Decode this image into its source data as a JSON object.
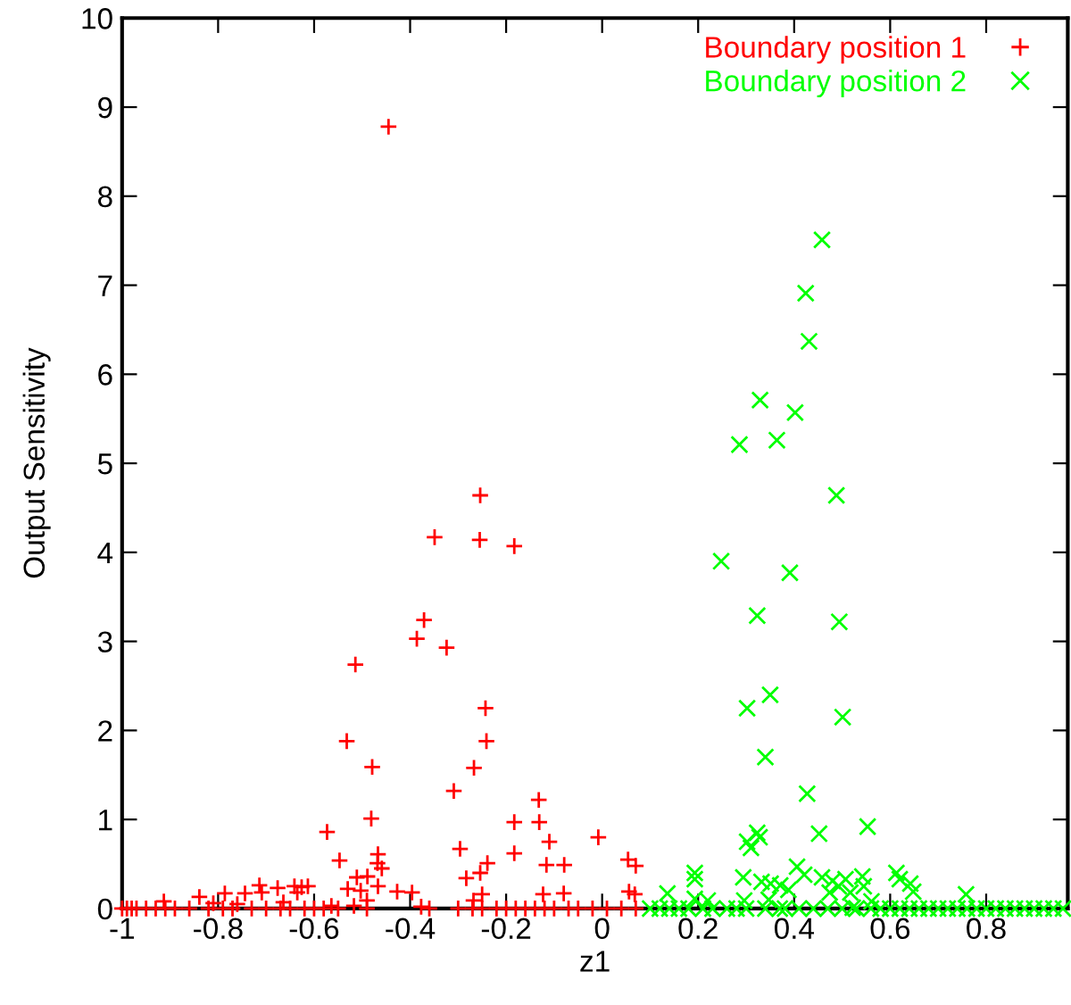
{
  "chart_data": {
    "type": "scatter",
    "xlabel": "z1",
    "ylabel": "Output Sensitivity",
    "xlim": [
      -1,
      0.97
    ],
    "ylim": [
      0,
      10
    ],
    "xticks": [
      -1,
      -0.8,
      -0.6,
      -0.4,
      -0.2,
      0,
      0.2,
      0.4,
      0.6,
      0.8
    ],
    "yticks": [
      0,
      1,
      2,
      3,
      4,
      5,
      6,
      7,
      8,
      9,
      10
    ],
    "grid": false,
    "legend": "top right",
    "series": [
      {
        "name": "Boundary position 1",
        "color": "#ff0000",
        "marker": "plus",
        "x": [
          -0.445,
          -0.254,
          -0.349,
          -0.255,
          -0.183,
          -0.371,
          -0.386,
          -0.324,
          -0.514,
          -0.243,
          -0.241,
          -0.532,
          -0.479,
          -0.267,
          -0.309,
          -0.132,
          -0.481,
          -0.183,
          -0.131,
          -0.573,
          -0.008,
          -0.11,
          -0.467,
          -0.296,
          -0.183,
          0.054,
          0.07,
          -0.547,
          -0.468,
          -0.459,
          -0.239,
          -0.254,
          -0.116,
          -0.079,
          -0.283,
          -0.511,
          -0.489,
          -0.53,
          -0.503,
          -0.467,
          -0.427,
          -0.396,
          -0.49,
          -0.25,
          -0.268,
          -0.123,
          -0.08,
          0.056,
          0.068,
          -0.714,
          -0.709,
          -0.676,
          -0.641,
          -0.626,
          -0.613,
          -0.635,
          -0.786,
          -0.744,
          -0.839,
          -0.76,
          -0.664,
          -0.564,
          -0.517,
          -0.377,
          -0.913,
          -0.81,
          -1,
          -0.99,
          -0.98,
          -0.97,
          -0.95,
          -0.93,
          -0.91,
          -0.89,
          -0.86,
          -0.82,
          -0.79,
          -0.77,
          -0.73,
          -0.7,
          -0.67,
          -0.65,
          -0.62,
          -0.6,
          -0.58,
          -0.55,
          -0.49,
          -0.36,
          -0.3,
          -0.27,
          -0.25,
          -0.22,
          -0.2,
          -0.18,
          -0.16,
          -0.14,
          -0.12,
          -0.1,
          -0.07,
          -0.05,
          -0.02,
          0.01,
          0.04,
          0.07
        ],
        "values": [
          8.78,
          4.64,
          4.17,
          4.14,
          4.07,
          3.24,
          3.03,
          2.93,
          2.74,
          2.25,
          1.88,
          1.88,
          1.59,
          1.58,
          1.32,
          1.22,
          1.01,
          0.97,
          0.97,
          0.86,
          0.8,
          0.75,
          0.61,
          0.67,
          0.62,
          0.55,
          0.48,
          0.54,
          0.51,
          0.45,
          0.51,
          0.4,
          0.49,
          0.49,
          0.34,
          0.35,
          0.36,
          0.22,
          0.2,
          0.25,
          0.19,
          0.18,
          0.09,
          0.16,
          0.09,
          0.16,
          0.17,
          0.19,
          0.16,
          0.26,
          0.18,
          0.23,
          0.25,
          0.24,
          0.25,
          0.18,
          0.17,
          0.17,
          0.13,
          0.05,
          0.07,
          0.03,
          0.03,
          0.02,
          0.08,
          0.06,
          0,
          0,
          0,
          0,
          0,
          0,
          0,
          0,
          0,
          0,
          0,
          0,
          0,
          0,
          0,
          0,
          0,
          0,
          0,
          0,
          0,
          0,
          0,
          0,
          0,
          0,
          0,
          0,
          0,
          0,
          0,
          0,
          0,
          0,
          0,
          0,
          0,
          0
        ]
      },
      {
        "name": "Boundary position 2",
        "color": "#00ff00",
        "marker": "cross",
        "x": [
          0.458,
          0.424,
          0.431,
          0.329,
          0.402,
          0.364,
          0.286,
          0.488,
          0.248,
          0.391,
          0.323,
          0.494,
          0.302,
          0.35,
          0.501,
          0.34,
          0.427,
          0.452,
          0.553,
          0.302,
          0.323,
          0.328,
          0.31,
          0.193,
          0.193,
          0.294,
          0.296,
          0.406,
          0.421,
          0.458,
          0.332,
          0.351,
          0.371,
          0.388,
          0.48,
          0.493,
          0.507,
          0.474,
          0.517,
          0.542,
          0.545,
          0.613,
          0.62,
          0.642,
          0.648,
          0.758,
          0.136,
          0.193,
          0.22,
          0.347,
          0.381,
          0.522,
          0.561,
          0.1,
          0.12,
          0.14,
          0.16,
          0.18,
          0.21,
          0.23,
          0.26,
          0.28,
          0.3,
          0.34,
          0.37,
          0.41,
          0.44,
          0.47,
          0.5,
          0.53,
          0.56,
          0.58,
          0.6,
          0.62,
          0.64,
          0.66,
          0.68,
          0.7,
          0.72,
          0.74,
          0.76,
          0.78,
          0.8,
          0.82,
          0.84,
          0.86,
          0.88,
          0.9,
          0.92,
          0.94,
          0.96
        ],
        "values": [
          7.51,
          6.91,
          6.37,
          5.71,
          5.57,
          5.26,
          5.21,
          4.64,
          3.9,
          3.77,
          3.29,
          3.22,
          2.25,
          2.4,
          2.15,
          1.7,
          1.29,
          0.84,
          0.92,
          0.75,
          0.85,
          0.8,
          0.68,
          0.4,
          0.33,
          0.35,
          0.09,
          0.47,
          0.38,
          0.35,
          0.3,
          0.28,
          0.26,
          0.21,
          0.31,
          0.25,
          0.33,
          0.18,
          0.18,
          0.36,
          0.25,
          0.4,
          0.33,
          0.28,
          0.19,
          0.16,
          0.17,
          0.11,
          0.09,
          0.1,
          0,
          0.01,
          0.08,
          0,
          0,
          0,
          0,
          0,
          0,
          0,
          0,
          0,
          0,
          0,
          0,
          0,
          0,
          0,
          0,
          0,
          0,
          0,
          0,
          0,
          0,
          0,
          0,
          0,
          0,
          0,
          0,
          0,
          0,
          0,
          0,
          0,
          0,
          0,
          0,
          0,
          0
        ]
      }
    ]
  }
}
